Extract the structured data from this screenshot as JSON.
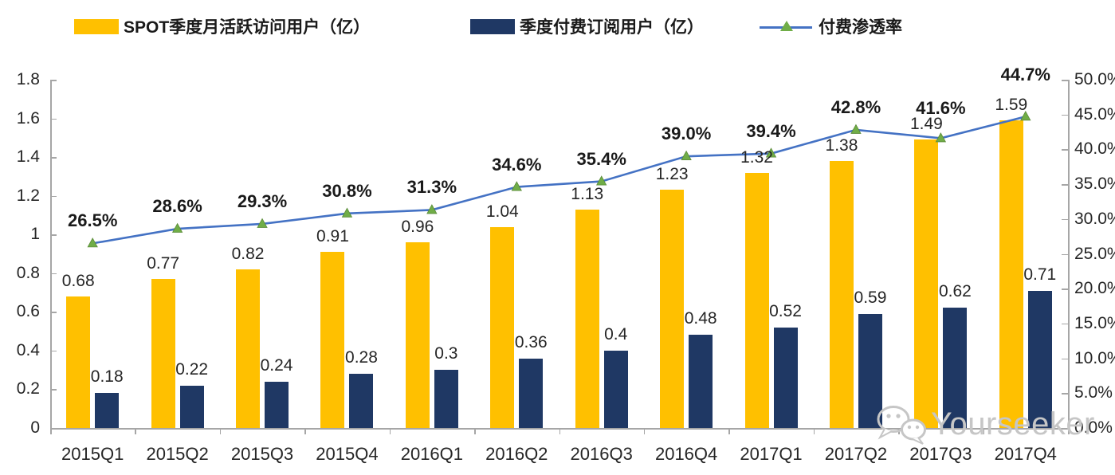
{
  "legend": [
    {
      "label": "SPOT季度月活跃访问用户（亿）",
      "color": "#FFC000"
    },
    {
      "label": "季度付费订阅用户（亿）",
      "color": "#1F3864"
    },
    {
      "label": "付费渗透率",
      "line_color": "#4472C4",
      "marker_color": "#70AD47"
    }
  ],
  "watermark": {
    "text": "Yourseeker",
    "icon": "wechat-icon"
  },
  "chart_data": {
    "type": "bar",
    "subtype": "grouped-bars-with-line-overlay",
    "title": "",
    "categories": [
      "2015Q1",
      "2015Q2",
      "2015Q3",
      "2015Q4",
      "2016Q1",
      "2016Q2",
      "2016Q3",
      "2016Q4",
      "2017Q1",
      "2017Q2",
      "2017Q3",
      "2017Q4"
    ],
    "series": [
      {
        "name": "SPOT季度月活跃访问用户（亿）",
        "type": "bar",
        "axis": "left",
        "color": "#FFC000",
        "values": [
          0.68,
          0.77,
          0.82,
          0.91,
          0.96,
          1.04,
          1.13,
          1.23,
          1.32,
          1.38,
          1.49,
          1.59
        ],
        "labels": [
          "0.68",
          "0.77",
          "0.82",
          "0.91",
          "0.96",
          "1.04",
          "1.13",
          "1.23",
          "1.32",
          "1.38",
          "1.49",
          "1.59"
        ]
      },
      {
        "name": "季度付费订阅用户（亿）",
        "type": "bar",
        "axis": "left",
        "color": "#1F3864",
        "values": [
          0.18,
          0.22,
          0.24,
          0.28,
          0.3,
          0.36,
          0.4,
          0.48,
          0.52,
          0.59,
          0.62,
          0.71
        ],
        "labels": [
          "0.18",
          "0.22",
          "0.24",
          "0.28",
          "0.3",
          "0.36",
          "0.4",
          "0.48",
          "0.52",
          "0.59",
          "0.62",
          "0.71"
        ]
      },
      {
        "name": "付费渗透率",
        "type": "line",
        "axis": "right",
        "color": "#4472C4",
        "marker": "triangle",
        "marker_color": "#70AD47",
        "values": [
          26.5,
          28.6,
          29.3,
          30.8,
          31.3,
          34.6,
          35.4,
          39.0,
          39.4,
          42.8,
          41.6,
          44.7
        ],
        "labels": [
          "26.5%",
          "28.6%",
          "29.3%",
          "30.8%",
          "31.3%",
          "34.6%",
          "35.4%",
          "39.0%",
          "39.4%",
          "42.8%",
          "41.6%",
          "44.7%"
        ]
      }
    ],
    "left_axis": {
      "min": 0,
      "max": 1.8,
      "tick_labels": [
        "1.8",
        "1.6",
        "1.4",
        "1.2",
        "1",
        "0.8",
        "0.6",
        "0.4",
        "0.2",
        "0"
      ]
    },
    "right_axis": {
      "min": 0,
      "max": 50,
      "tick_labels": [
        "50.0%",
        "45.0%",
        "40.0%",
        "35.0%",
        "30.0%",
        "25.0%",
        "20.0%",
        "15.0%",
        "10.0%",
        "5.0%",
        "0.0%"
      ]
    },
    "grid": false,
    "legend_position": "top",
    "background": "#FFFFFF",
    "axis_color": "#A6A6A6"
  }
}
